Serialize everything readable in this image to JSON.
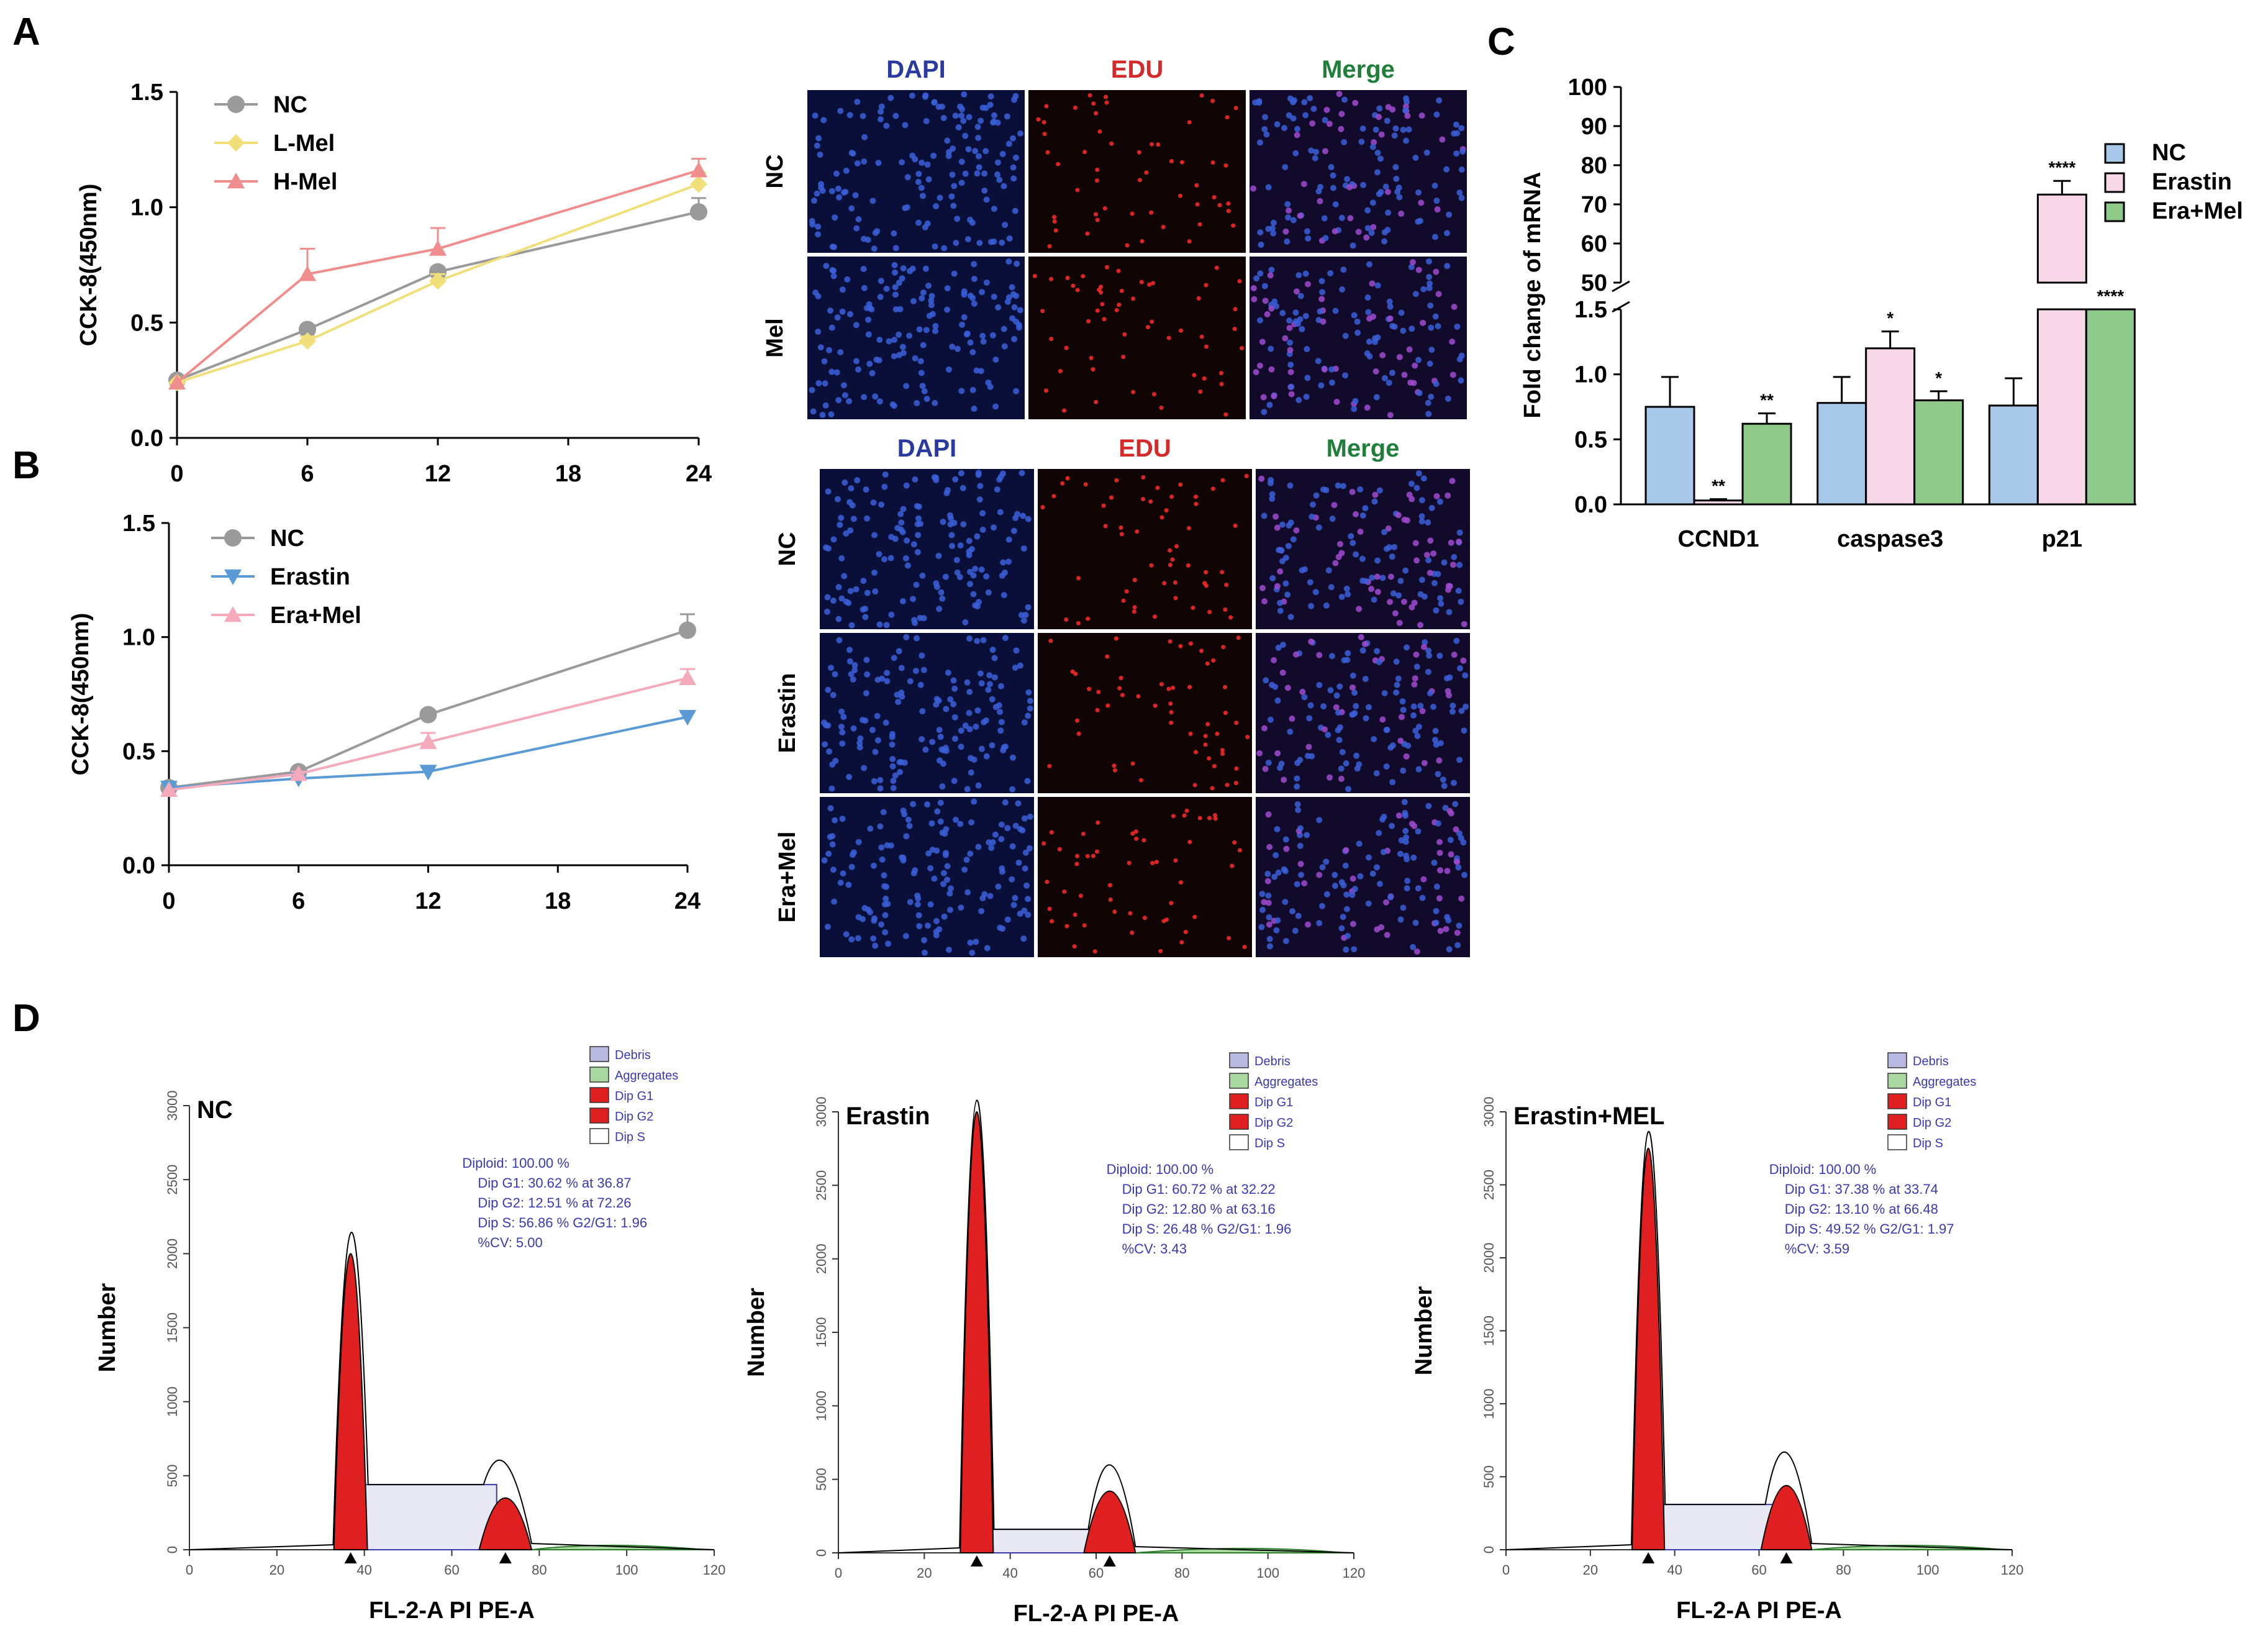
{
  "panel_labels": {
    "a": "A",
    "b": "B",
    "c": "C",
    "d": "D"
  },
  "colors": {
    "nc": "#9a9a9a",
    "l_mel": "#f1e07a",
    "h_mel": "#f08d8d",
    "erastin": "#5b9bd5",
    "era_mel": "#f5aabb",
    "bar_nc": "#a8c8ea",
    "bar_erastin": "#f8d7e8",
    "bar_era_mel": "#8fc98a",
    "dapi": "#2b3a9e",
    "edu": "#d42a2a",
    "merge": "#1e7e3a",
    "peak": "#e02020",
    "aggregates": "#a8d8a0",
    "debris": "#b8b8e0",
    "stats": "#3a3ab0"
  },
  "chart_data": [
    {
      "id": "A-line",
      "type": "line",
      "ylabel": "CCK-8(450nm)",
      "x": [
        0,
        6,
        12,
        18,
        24
      ],
      "x_ticks": [
        "0",
        "6",
        "12",
        "18",
        "24"
      ],
      "y_ticks": [
        "0.0",
        "0.5",
        "1.0",
        "1.5"
      ],
      "ylim": [
        0,
        1.5
      ],
      "series": [
        {
          "name": "NC",
          "x": [
            0,
            6,
            12,
            24
          ],
          "values": [
            0.25,
            0.47,
            0.72,
            0.98
          ],
          "err": [
            0,
            0.02,
            0.02,
            0.06
          ],
          "marker": "circle"
        },
        {
          "name": "L-Mel",
          "x": [
            0,
            6,
            12,
            24
          ],
          "values": [
            0.24,
            0.42,
            0.68,
            1.1
          ],
          "err": [
            0,
            0.02,
            0.03,
            0.05
          ],
          "marker": "diamond"
        },
        {
          "name": "H-Mel",
          "x": [
            0,
            6,
            12,
            24
          ],
          "values": [
            0.24,
            0.71,
            0.82,
            1.16
          ],
          "err": [
            0,
            0.11,
            0.09,
            0.05
          ],
          "marker": "triangle"
        }
      ]
    },
    {
      "id": "B-line",
      "type": "line",
      "ylabel": "CCK-8(450nm)",
      "x": [
        0,
        6,
        12,
        18,
        24
      ],
      "x_ticks": [
        "0",
        "6",
        "12",
        "18",
        "24"
      ],
      "y_ticks": [
        "0.0",
        "0.5",
        "1.0",
        "1.5"
      ],
      "ylim": [
        0,
        1.5
      ],
      "series": [
        {
          "name": "NC",
          "x": [
            0,
            6,
            12,
            24
          ],
          "values": [
            0.34,
            0.41,
            0.66,
            1.03
          ],
          "err": [
            0,
            0.01,
            0.02,
            0.07
          ],
          "marker": "circle"
        },
        {
          "name": "Erastin",
          "x": [
            0,
            6,
            12,
            24
          ],
          "values": [
            0.34,
            0.38,
            0.41,
            0.65
          ],
          "err": [
            0,
            0.01,
            0.02,
            0.02
          ],
          "marker": "triangle-down"
        },
        {
          "name": "Era+Mel",
          "x": [
            0,
            6,
            12,
            24
          ],
          "values": [
            0.33,
            0.4,
            0.54,
            0.82
          ],
          "err": [
            0,
            0.01,
            0.04,
            0.04
          ],
          "marker": "triangle"
        }
      ]
    },
    {
      "id": "C-bar",
      "type": "bar",
      "ylabel": "Fold change of mRNA",
      "categories": [
        "CCND1",
        "caspase3",
        "p21"
      ],
      "y_ticks_low": [
        "0.0",
        "0.5",
        "1.0",
        "1.5"
      ],
      "y_ticks_high": [
        "50",
        "60",
        "70",
        "80",
        "90",
        "100"
      ],
      "ylim_low": [
        0,
        1.5
      ],
      "ylim_high": [
        50,
        100
      ],
      "series": [
        {
          "name": "NC",
          "values": [
            0.75,
            0.78,
            0.76
          ],
          "err": [
            0.23,
            0.2,
            0.21
          ],
          "sig": [
            "",
            "",
            ""
          ]
        },
        {
          "name": "Erastin",
          "values": [
            0.03,
            1.2,
            72.5
          ],
          "err": [
            0.01,
            0.13,
            3.5
          ],
          "sig": [
            "**",
            "*",
            "****"
          ]
        },
        {
          "name": "Era+Mel",
          "values": [
            0.62,
            0.8,
            1.5
          ],
          "err": [
            0.08,
            0.07,
            0
          ],
          "sig": [
            "**",
            "*",
            "****"
          ]
        }
      ]
    },
    {
      "id": "D-flow",
      "type": "area",
      "xlabel": "FL-2-A PI PE-A",
      "ylabel": "Number",
      "x_ticks": [
        "0",
        "20",
        "40",
        "60",
        "80",
        "100",
        "120"
      ],
      "y_ticks": [
        "0",
        "500",
        "1000",
        "1500",
        "2000",
        "2500",
        "3000"
      ],
      "legend": [
        "Debris",
        "Aggregates",
        "Dip G1",
        "Dip G2",
        "Dip S"
      ],
      "plots": [
        {
          "name": "NC",
          "g1_pos": 36.87,
          "g1_h": 2000,
          "g2_pos": 72.26,
          "g2_h": 350,
          "s_h": 440,
          "max_h": 2000,
          "stats": [
            "Diploid: 100.00 %",
            "Dip G1: 30.62 % at 36.87",
            "Dip G2: 12.51 % at 72.26",
            "Dip S: 56.86 %   G2/G1: 1.96",
            "%CV: 5.00"
          ]
        },
        {
          "name": "Erastin",
          "g1_pos": 32.22,
          "g1_h": 3000,
          "g2_pos": 63.16,
          "g2_h": 420,
          "s_h": 160,
          "max_h": 3000,
          "stats": [
            "Diploid: 100.00 %",
            "Dip G1: 60.72 % at 32.22",
            "Dip G2: 12.80 % at 63.16",
            "Dip S: 26.48 %   G2/G1: 1.96",
            "%CV: 3.43"
          ]
        },
        {
          "name": "Erastin+MEL",
          "g1_pos": 33.74,
          "g1_h": 2750,
          "g2_pos": 66.48,
          "g2_h": 440,
          "s_h": 310,
          "max_h": 2750,
          "stats": [
            "Diploid: 100.00 %",
            "Dip G1: 37.38 % at 33.74",
            "Dip G2: 13.10 % at 66.48",
            "Dip S: 49.52 %   G2/G1: 1.97",
            "%CV: 3.59"
          ]
        }
      ]
    }
  ],
  "microscopy": {
    "top": {
      "headers": [
        "DAPI",
        "EDU",
        "Merge"
      ],
      "rows": [
        "NC",
        "Mel"
      ]
    },
    "bottom": {
      "headers": [
        "DAPI",
        "EDU",
        "Merge"
      ],
      "rows": [
        "NC",
        "Erastin",
        "Era+Mel"
      ]
    }
  }
}
